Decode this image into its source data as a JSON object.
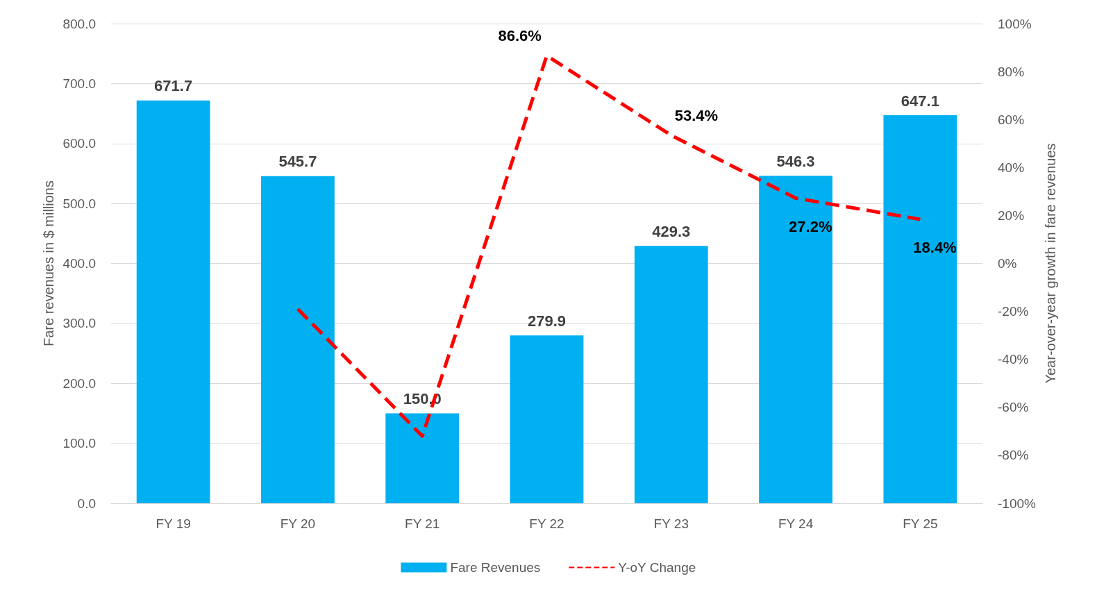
{
  "chart_data": {
    "type": "bar",
    "categories": [
      "FY 19",
      "FY 20",
      "FY 21",
      "FY 22",
      "FY 23",
      "FY 24",
      "FY 25"
    ],
    "ylabel": "Fare revenues in $ millions",
    "y2label": "Year-over-year growth in fare revenues",
    "series": [
      {
        "name": "Fare Revenues",
        "color": "#00b0f0",
        "values": [
          671.7,
          545.7,
          150.0,
          279.9,
          429.3,
          546.3,
          647.1
        ],
        "value_labels": [
          "671.7",
          "545.7",
          "150.0",
          "279.9",
          "429.3",
          "546.3",
          "647.1"
        ]
      },
      {
        "name": "Y-oY Change",
        "type": "line",
        "axis": "y2",
        "color": "#ff0000",
        "line_style": "dashed",
        "marker": "none",
        "values": [
          null,
          -19,
          -72,
          86.6,
          53.4,
          27.2,
          18.4
        ],
        "value_labels": [
          null,
          null,
          null,
          "86.6%",
          "53.4%",
          "27.2%",
          "18.4%"
        ]
      }
    ],
    "ylim": [
      0,
      800
    ],
    "yticks": [
      {
        "value": 0,
        "label": "0.0"
      },
      {
        "value": 100,
        "label": "100.0"
      },
      {
        "value": 200,
        "label": "200.0"
      },
      {
        "value": 300,
        "label": "300.0"
      },
      {
        "value": 400,
        "label": "400.0"
      },
      {
        "value": 500,
        "label": "500.0"
      },
      {
        "value": 600,
        "label": "600.0"
      },
      {
        "value": 700,
        "label": "700.0"
      },
      {
        "value": 800,
        "label": "800.0"
      }
    ],
    "y2lim": [
      -100,
      100
    ],
    "y2ticks": [
      {
        "value": -100,
        "label": "-100%"
      },
      {
        "value": -80,
        "label": "-80%"
      },
      {
        "value": -60,
        "label": "-60%"
      },
      {
        "value": -40,
        "label": "-40%"
      },
      {
        "value": -20,
        "label": "-20%"
      },
      {
        "value": 0,
        "label": "0%"
      },
      {
        "value": 20,
        "label": "20%"
      },
      {
        "value": 40,
        "label": "40%"
      },
      {
        "value": 60,
        "label": "60%"
      },
      {
        "value": 80,
        "label": "80%"
      },
      {
        "value": 100,
        "label": "100%"
      }
    ],
    "grid": "y",
    "legend": "bottom"
  }
}
